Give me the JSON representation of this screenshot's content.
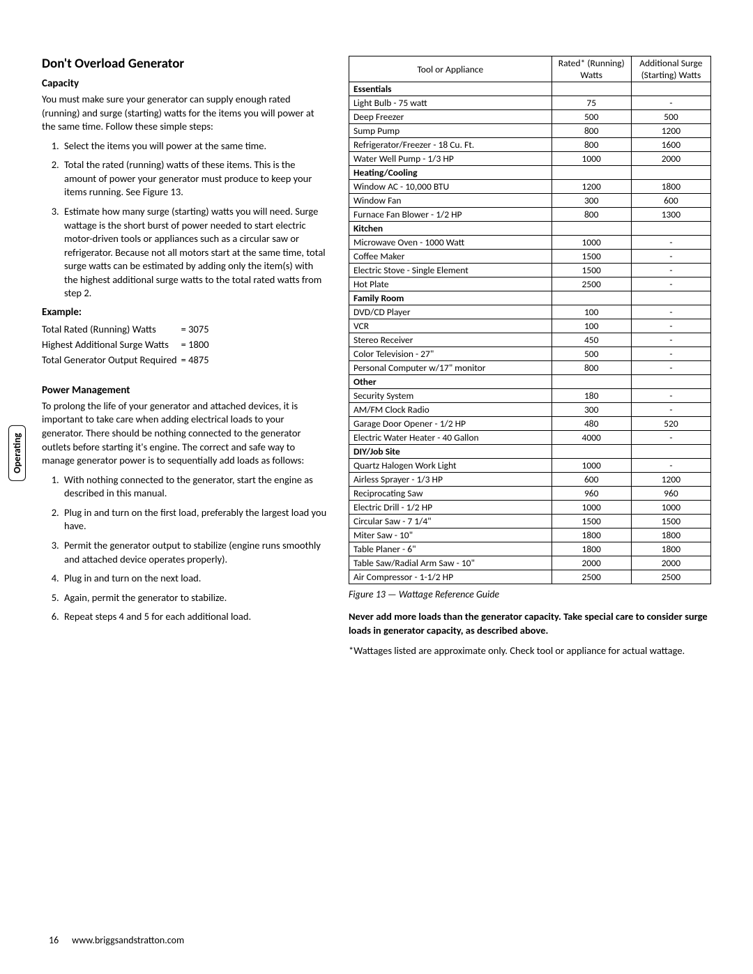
{
  "section_title": "Don't Overload Generator",
  "capacity": {
    "heading": "Capacity",
    "intro": "You must make sure your generator can supply enough rated (running) and surge (starting) watts for the items you will power at the same time. Follow these simple steps:",
    "steps": [
      "Select the items you will power at the same time.",
      "Total the rated (running) watts of these items. This is the amount of power your generator must produce to keep your items running. See Figure 13.",
      "Estimate how many surge (starting) watts you will need. Surge wattage is the short burst of power needed to start electric motor-driven tools or appliances such as a circular saw or refrigerator. Because not all motors start at the same time, total surge watts can be estimated by adding only the item(s) with the highest additional surge watts to the total rated watts from step 2."
    ]
  },
  "example": {
    "heading": "Example:",
    "rows": [
      {
        "label": "Total Rated (Running) Watts",
        "value": "= 3075"
      },
      {
        "label": "Highest Additional Surge Watts",
        "value": "= 1800"
      },
      {
        "label": "Total Generator Output Required",
        "value": "= 4875"
      }
    ]
  },
  "power_mgmt": {
    "heading": "Power Management",
    "intro": "To prolong the life of your generator and attached devices, it is important to take care when adding electrical loads to your generator. There should be nothing connected to the generator outlets before starting it's engine. The correct and safe way to manage generator power is to sequentially add loads as follows:",
    "steps": [
      "With nothing connected to the generator, start the engine as described in this manual.",
      "Plug in and turn on the first load, preferably the largest load you have.",
      "Permit the generator output to stabilize (engine runs smoothly and attached device operates properly).",
      "Plug in and turn on the next load.",
      "Again, permit the generator to stabilize.",
      "Repeat steps 4 and 5 for each additional load."
    ]
  },
  "side_tab": "Operating",
  "watt_table": {
    "headers": {
      "tool": "Tool or Appliance",
      "rated": "Rated* (Running) Watts",
      "surge": "Additional Surge (Starting) Watts"
    },
    "groups": [
      {
        "name": "Essentials",
        "rows": [
          {
            "t": "Light Bulb - 75 watt",
            "r": "75",
            "s": "-"
          },
          {
            "t": "Deep Freezer",
            "r": "500",
            "s": "500"
          },
          {
            "t": "Sump Pump",
            "r": "800",
            "s": "1200"
          },
          {
            "t": "Refrigerator/Freezer - 18 Cu. Ft.",
            "r": "800",
            "s": "1600"
          },
          {
            "t": "Water Well Pump - 1/3 HP",
            "r": "1000",
            "s": "2000"
          }
        ]
      },
      {
        "name": "Heating/Cooling",
        "rows": [
          {
            "t": "Window AC - 10,000 BTU",
            "r": "1200",
            "s": "1800"
          },
          {
            "t": "Window Fan",
            "r": "300",
            "s": "600"
          },
          {
            "t": "Furnace Fan Blower - 1/2 HP",
            "r": "800",
            "s": "1300"
          }
        ]
      },
      {
        "name": "Kitchen",
        "rows": [
          {
            "t": "Microwave Oven - 1000 Watt",
            "r": "1000",
            "s": "-"
          },
          {
            "t": "Coffee Maker",
            "r": "1500",
            "s": "-"
          },
          {
            "t": "Electric Stove - Single Element",
            "r": "1500",
            "s": "-"
          },
          {
            "t": "Hot Plate",
            "r": "2500",
            "s": "-"
          }
        ]
      },
      {
        "name": "Family Room",
        "rows": [
          {
            "t": "DVD/CD Player",
            "r": "100",
            "s": "-"
          },
          {
            "t": "VCR",
            "r": "100",
            "s": "-"
          },
          {
            "t": "Stereo Receiver",
            "r": "450",
            "s": "-"
          },
          {
            "t": "Color Television - 27\"",
            "r": "500",
            "s": "-"
          },
          {
            "t": "Personal Computer w/17\" monitor",
            "r": "800",
            "s": "-"
          }
        ]
      },
      {
        "name": "Other",
        "rows": [
          {
            "t": "Security System",
            "r": "180",
            "s": "-"
          },
          {
            "t": "AM/FM Clock Radio",
            "r": "300",
            "s": "-"
          },
          {
            "t": "Garage Door Opener - 1/2 HP",
            "r": "480",
            "s": "520"
          },
          {
            "t": "Electric Water Heater - 40 Gallon",
            "r": "4000",
            "s": "-"
          }
        ]
      },
      {
        "name": "DIY/Job Site",
        "rows": [
          {
            "t": "Quartz Halogen Work Light",
            "r": "1000",
            "s": "-"
          },
          {
            "t": "Airless Sprayer - 1/3 HP",
            "r": "600",
            "s": "1200"
          },
          {
            "t": "Reciprocating Saw",
            "r": "960",
            "s": "960"
          },
          {
            "t": "Electric Drill - 1/2 HP",
            "r": "1000",
            "s": "1000"
          },
          {
            "t": "Circular Saw - 7 1/4\"",
            "r": "1500",
            "s": "1500"
          },
          {
            "t": "Miter Saw - 10\"",
            "r": "1800",
            "s": "1800"
          },
          {
            "t": "Table Planer - 6\"",
            "r": "1800",
            "s": "1800"
          },
          {
            "t": "Table Saw/Radial Arm Saw - 10\"",
            "r": "2000",
            "s": "2000"
          },
          {
            "t": "Air Compressor - 1-1/2 HP",
            "r": "2500",
            "s": "2500"
          }
        ]
      }
    ]
  },
  "fig_caption": "Figure 13 — Wattage Reference Guide",
  "warning": "Never add more loads than the generator capacity. Take special care to consider surge loads in generator capacity, as described above.",
  "footnote": "*Wattages listed are approximate only. Check tool or appliance for actual wattage.",
  "footer": {
    "page": "16",
    "url": "www.briggsandstratton.com"
  }
}
